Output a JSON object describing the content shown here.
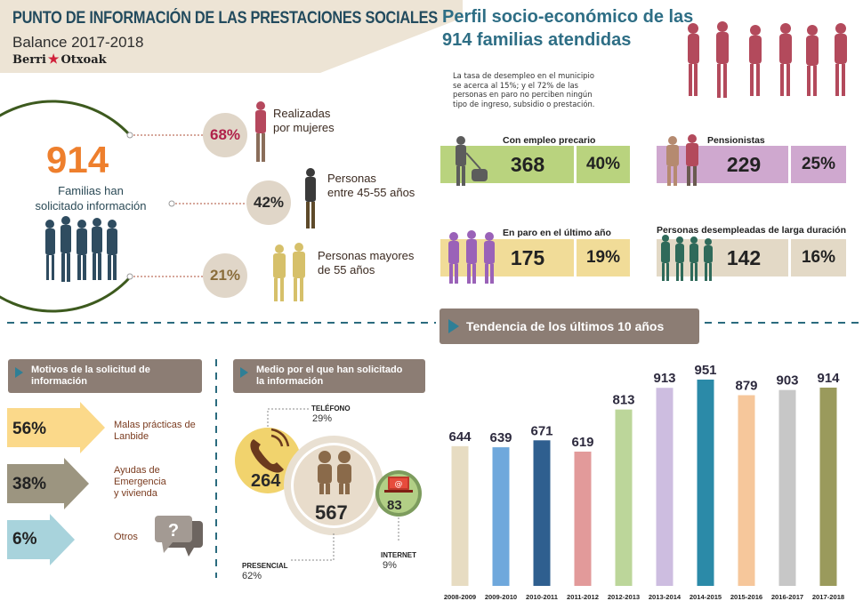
{
  "header": {
    "title": "PUNTO DE INFORMACIÓN DE LAS PRESTACIONES SOCIALES",
    "subtitle": "Balance 2017-2018",
    "logo_left": "Berri",
    "logo_right": "Otxoak"
  },
  "families": {
    "total": "914",
    "label_line1": "Familias han",
    "label_line2": "solicitado información",
    "stats": [
      {
        "pct": "68%",
        "label_line1": "Realizadas",
        "label_line2": "por mujeres",
        "color": "#b0204a"
      },
      {
        "pct": "42%",
        "label_line1": "Personas",
        "label_line2": "entre 45-55 años",
        "color": "#2a2a2a"
      },
      {
        "pct": "21%",
        "label_line1": "Personas mayores",
        "label_line2": "de 55 años",
        "color": "#8a6d3b"
      }
    ]
  },
  "perfil": {
    "title_line1": "Perfil socio-económico de las",
    "title_line2": "914 familias atendidas",
    "text": "La tasa de desempleo en el municipio se acerca al 15%; y el 72% de las personas en paro no perciben ningún tipo de ingreso, subsidio o prestación.",
    "categories": [
      {
        "title": "Con empleo precario",
        "value": "368",
        "pct": "40%",
        "color": "#b9d37e"
      },
      {
        "title": "Pensionistas",
        "value": "229",
        "pct": "25%",
        "color": "#cfa8cf"
      },
      {
        "title": "En paro en el último año",
        "value": "175",
        "pct": "19%",
        "color": "#f1dc98"
      },
      {
        "title": "Personas desempleadas de larga duración",
        "value": "142",
        "pct": "16%",
        "color": "#e3d9c6"
      }
    ]
  },
  "motivos": {
    "header_line1": "Motivos de la solicitud de",
    "header_line2": "información",
    "items": [
      {
        "pct": "56%",
        "label": [
          "Malas prácticas de",
          "Lanbide"
        ],
        "color": "#fbd98a"
      },
      {
        "pct": "38%",
        "label": [
          "Ayudas de",
          "Emergencia",
          "y vivienda"
        ],
        "color": "#9c9580"
      },
      {
        "pct": "6%",
        "label": [
          "Otros"
        ],
        "color": "#a8d3dc"
      }
    ]
  },
  "medio": {
    "header_line1": "Medio por el que han solicitado",
    "header_line2": "la información",
    "telefono": {
      "label": "TELÉFONO",
      "pct": "29%",
      "value": "264"
    },
    "presencial": {
      "label": "PRESENCIAL",
      "pct": "62%",
      "value": "567"
    },
    "internet": {
      "label": "INTERNET",
      "pct": "9%",
      "value": "83"
    }
  },
  "chart_data": {
    "type": "bar",
    "title": "Tendencia de los últimos 10 años",
    "categories": [
      "2008-2009",
      "2009-2010",
      "2010-2011",
      "2011-2012",
      "2012-2013",
      "2013-2014",
      "2014-2015",
      "2015-2016",
      "2016-2017",
      "2017-2018"
    ],
    "values": [
      644,
      639,
      671,
      619,
      813,
      913,
      951,
      879,
      903,
      914
    ],
    "colors": [
      "#e7dcc2",
      "#6fa8dc",
      "#2f5f8f",
      "#e29a9a",
      "#bcd69a",
      "#cdbde0",
      "#2b8aa8",
      "#f6c79b",
      "#c7c7c7",
      "#9a9a5c"
    ],
    "ylim": [
      0,
      1000
    ],
    "xlabel": "",
    "ylabel": "",
    "grid": false,
    "legend": "none"
  }
}
